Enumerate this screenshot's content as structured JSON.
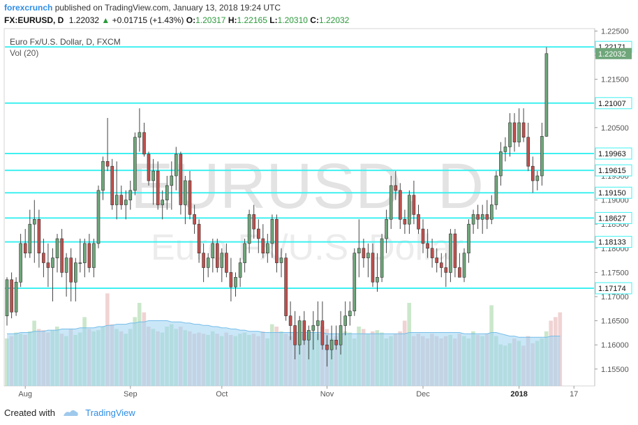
{
  "header": {
    "author": "forexcrunch",
    "published_text": "published on TradingView.com, January 13, 2018 19:24 UTC",
    "symbol": "FX:EURUSD, D",
    "last": "1.22032",
    "change": "+0.01715 (+1.43%)",
    "o_label": "O:",
    "o_value": "1.20317",
    "h_label": "H:",
    "h_value": "1.22165",
    "l_label": "L:",
    "l_value": "1.20310",
    "c_label": "C:",
    "c_value": "1.22032"
  },
  "footer": {
    "created_with": "Created with",
    "brand": "TradingView"
  },
  "chart_data": {
    "type": "candlestick",
    "title": "Euro Fx/U.S. Dollar, D, FXCM",
    "indicator_label": "Vol (20)",
    "watermark_symbol": "EURUSD, D",
    "watermark_name": "Euro Fx/U.S. Dollar",
    "y_range": [
      1.1515,
      1.2255
    ],
    "y_ticks": [
      "1.22500",
      "1.22000",
      "1.21500",
      "1.21000",
      "1.20500",
      "1.20000",
      "1.19500",
      "1.19000",
      "1.18500",
      "1.18000",
      "1.17500",
      "1.17000",
      "1.16500",
      "1.16000",
      "1.15500"
    ],
    "x_labels": [
      {
        "label": "Aug",
        "index": 4
      },
      {
        "label": "Sep",
        "index": 27
      },
      {
        "label": "Oct",
        "index": 47
      },
      {
        "label": "Nov",
        "index": 70
      },
      {
        "label": "Dec",
        "index": 91
      },
      {
        "label": "2018",
        "index": 112
      },
      {
        "label": "17",
        "index": 124
      }
    ],
    "levels": [
      "1.22171",
      "1.21007",
      "1.19963",
      "1.19615",
      "1.19150",
      "1.18627",
      "1.18133",
      "1.17174"
    ],
    "last_price": "1.22032",
    "colors": {
      "up": "#6fa67a",
      "down": "#c0504d",
      "level": "#3ff0f0",
      "volume_ma": "#9fd4f2",
      "volume_up": "#a8d7a8",
      "volume_down": "#e6b6b6",
      "last_label": "#6fa67a"
    },
    "candles": [
      {
        "o": 1.166,
        "h": 1.174,
        "l": 1.164,
        "c": 1.1735
      },
      {
        "o": 1.1735,
        "h": 1.175,
        "l": 1.1655,
        "c": 1.1668
      },
      {
        "o": 1.1668,
        "h": 1.174,
        "l": 1.166,
        "c": 1.173
      },
      {
        "o": 1.173,
        "h": 1.183,
        "l": 1.172,
        "c": 1.181
      },
      {
        "o": 1.181,
        "h": 1.184,
        "l": 1.178,
        "c": 1.179
      },
      {
        "o": 1.179,
        "h": 1.188,
        "l": 1.178,
        "c": 1.185
      },
      {
        "o": 1.185,
        "h": 1.19,
        "l": 1.177,
        "c": 1.186
      },
      {
        "o": 1.186,
        "h": 1.188,
        "l": 1.176,
        "c": 1.179
      },
      {
        "o": 1.179,
        "h": 1.182,
        "l": 1.174,
        "c": 1.177
      },
      {
        "o": 1.177,
        "h": 1.181,
        "l": 1.172,
        "c": 1.176
      },
      {
        "o": 1.176,
        "h": 1.18,
        "l": 1.169,
        "c": 1.178
      },
      {
        "o": 1.178,
        "h": 1.183,
        "l": 1.175,
        "c": 1.182
      },
      {
        "o": 1.182,
        "h": 1.184,
        "l": 1.174,
        "c": 1.175
      },
      {
        "o": 1.175,
        "h": 1.179,
        "l": 1.17,
        "c": 1.178
      },
      {
        "o": 1.178,
        "h": 1.18,
        "l": 1.169,
        "c": 1.173
      },
      {
        "o": 1.173,
        "h": 1.178,
        "l": 1.169,
        "c": 1.177
      },
      {
        "o": 1.177,
        "h": 1.182,
        "l": 1.175,
        "c": 1.177
      },
      {
        "o": 1.177,
        "h": 1.182,
        "l": 1.174,
        "c": 1.181
      },
      {
        "o": 1.181,
        "h": 1.183,
        "l": 1.175,
        "c": 1.176
      },
      {
        "o": 1.176,
        "h": 1.182,
        "l": 1.174,
        "c": 1.181
      },
      {
        "o": 1.181,
        "h": 1.193,
        "l": 1.18,
        "c": 1.192
      },
      {
        "o": 1.192,
        "h": 1.199,
        "l": 1.19,
        "c": 1.198
      },
      {
        "o": 1.198,
        "h": 1.207,
        "l": 1.196,
        "c": 1.197
      },
      {
        "o": 1.197,
        "h": 1.1985,
        "l": 1.188,
        "c": 1.189
      },
      {
        "o": 1.189,
        "h": 1.198,
        "l": 1.186,
        "c": 1.191
      },
      {
        "o": 1.191,
        "h": 1.193,
        "l": 1.188,
        "c": 1.189
      },
      {
        "o": 1.189,
        "h": 1.192,
        "l": 1.186,
        "c": 1.19
      },
      {
        "o": 1.19,
        "h": 1.194,
        "l": 1.188,
        "c": 1.192
      },
      {
        "o": 1.192,
        "h": 1.204,
        "l": 1.191,
        "c": 1.203
      },
      {
        "o": 1.203,
        "h": 1.209,
        "l": 1.2,
        "c": 1.204
      },
      {
        "o": 1.204,
        "h": 1.206,
        "l": 1.199,
        "c": 1.1995
      },
      {
        "o": 1.1995,
        "h": 1.2,
        "l": 1.193,
        "c": 1.194
      },
      {
        "o": 1.194,
        "h": 1.1985,
        "l": 1.189,
        "c": 1.196
      },
      {
        "o": 1.196,
        "h": 1.198,
        "l": 1.188,
        "c": 1.189
      },
      {
        "o": 1.189,
        "h": 1.192,
        "l": 1.186,
        "c": 1.19
      },
      {
        "o": 1.19,
        "h": 1.195,
        "l": 1.188,
        "c": 1.193
      },
      {
        "o": 1.193,
        "h": 1.198,
        "l": 1.188,
        "c": 1.195
      },
      {
        "o": 1.195,
        "h": 1.201,
        "l": 1.192,
        "c": 1.1995
      },
      {
        "o": 1.1995,
        "h": 1.2,
        "l": 1.187,
        "c": 1.189
      },
      {
        "o": 1.189,
        "h": 1.195,
        "l": 1.185,
        "c": 1.194
      },
      {
        "o": 1.194,
        "h": 1.196,
        "l": 1.186,
        "c": 1.187
      },
      {
        "o": 1.187,
        "h": 1.189,
        "l": 1.183,
        "c": 1.185
      },
      {
        "o": 1.185,
        "h": 1.186,
        "l": 1.177,
        "c": 1.179
      },
      {
        "o": 1.179,
        "h": 1.181,
        "l": 1.173,
        "c": 1.176
      },
      {
        "o": 1.176,
        "h": 1.179,
        "l": 1.174,
        "c": 1.178
      },
      {
        "o": 1.178,
        "h": 1.182,
        "l": 1.175,
        "c": 1.181
      },
      {
        "o": 1.181,
        "h": 1.182,
        "l": 1.175,
        "c": 1.176
      },
      {
        "o": 1.176,
        "h": 1.18,
        "l": 1.173,
        "c": 1.179
      },
      {
        "o": 1.179,
        "h": 1.181,
        "l": 1.174,
        "c": 1.175
      },
      {
        "o": 1.175,
        "h": 1.178,
        "l": 1.169,
        "c": 1.172
      },
      {
        "o": 1.172,
        "h": 1.175,
        "l": 1.17,
        "c": 1.174
      },
      {
        "o": 1.174,
        "h": 1.178,
        "l": 1.172,
        "c": 1.177
      },
      {
        "o": 1.177,
        "h": 1.182,
        "l": 1.175,
        "c": 1.181
      },
      {
        "o": 1.181,
        "h": 1.188,
        "l": 1.179,
        "c": 1.187
      },
      {
        "o": 1.187,
        "h": 1.189,
        "l": 1.182,
        "c": 1.184
      },
      {
        "o": 1.184,
        "h": 1.186,
        "l": 1.179,
        "c": 1.182
      },
      {
        "o": 1.182,
        "h": 1.185,
        "l": 1.178,
        "c": 1.179
      },
      {
        "o": 1.179,
        "h": 1.183,
        "l": 1.177,
        "c": 1.181
      },
      {
        "o": 1.181,
        "h": 1.187,
        "l": 1.178,
        "c": 1.186
      },
      {
        "o": 1.186,
        "h": 1.187,
        "l": 1.175,
        "c": 1.177
      },
      {
        "o": 1.177,
        "h": 1.18,
        "l": 1.174,
        "c": 1.178
      },
      {
        "o": 1.178,
        "h": 1.179,
        "l": 1.165,
        "c": 1.166
      },
      {
        "o": 1.166,
        "h": 1.169,
        "l": 1.161,
        "c": 1.164
      },
      {
        "o": 1.164,
        "h": 1.167,
        "l": 1.157,
        "c": 1.16
      },
      {
        "o": 1.16,
        "h": 1.166,
        "l": 1.158,
        "c": 1.165
      },
      {
        "o": 1.165,
        "h": 1.167,
        "l": 1.16,
        "c": 1.161
      },
      {
        "o": 1.161,
        "h": 1.164,
        "l": 1.157,
        "c": 1.163
      },
      {
        "o": 1.163,
        "h": 1.167,
        "l": 1.159,
        "c": 1.164
      },
      {
        "o": 1.164,
        "h": 1.169,
        "l": 1.161,
        "c": 1.165
      },
      {
        "o": 1.165,
        "h": 1.169,
        "l": 1.159,
        "c": 1.16
      },
      {
        "o": 1.16,
        "h": 1.162,
        "l": 1.1555,
        "c": 1.159
      },
      {
        "o": 1.159,
        "h": 1.164,
        "l": 1.157,
        "c": 1.161
      },
      {
        "o": 1.161,
        "h": 1.164,
        "l": 1.159,
        "c": 1.16
      },
      {
        "o": 1.16,
        "h": 1.167,
        "l": 1.158,
        "c": 1.164
      },
      {
        "o": 1.164,
        "h": 1.169,
        "l": 1.162,
        "c": 1.166
      },
      {
        "o": 1.166,
        "h": 1.169,
        "l": 1.164,
        "c": 1.167
      },
      {
        "o": 1.167,
        "h": 1.18,
        "l": 1.166,
        "c": 1.179
      },
      {
        "o": 1.179,
        "h": 1.186,
        "l": 1.174,
        "c": 1.18
      },
      {
        "o": 1.18,
        "h": 1.182,
        "l": 1.176,
        "c": 1.178
      },
      {
        "o": 1.178,
        "h": 1.181,
        "l": 1.174,
        "c": 1.179
      },
      {
        "o": 1.179,
        "h": 1.181,
        "l": 1.172,
        "c": 1.173
      },
      {
        "o": 1.173,
        "h": 1.179,
        "l": 1.171,
        "c": 1.174
      },
      {
        "o": 1.174,
        "h": 1.183,
        "l": 1.173,
        "c": 1.182
      },
      {
        "o": 1.182,
        "h": 1.188,
        "l": 1.179,
        "c": 1.186
      },
      {
        "o": 1.186,
        "h": 1.195,
        "l": 1.184,
        "c": 1.193
      },
      {
        "o": 1.193,
        "h": 1.196,
        "l": 1.19,
        "c": 1.192
      },
      {
        "o": 1.192,
        "h": 1.1935,
        "l": 1.184,
        "c": 1.186
      },
      {
        "o": 1.186,
        "h": 1.188,
        "l": 1.183,
        "c": 1.185
      },
      {
        "o": 1.185,
        "h": 1.192,
        "l": 1.183,
        "c": 1.191
      },
      {
        "o": 1.191,
        "h": 1.194,
        "l": 1.185,
        "c": 1.187
      },
      {
        "o": 1.187,
        "h": 1.189,
        "l": 1.183,
        "c": 1.184
      },
      {
        "o": 1.184,
        "h": 1.186,
        "l": 1.179,
        "c": 1.181
      },
      {
        "o": 1.181,
        "h": 1.184,
        "l": 1.178,
        "c": 1.18
      },
      {
        "o": 1.18,
        "h": 1.182,
        "l": 1.176,
        "c": 1.178
      },
      {
        "o": 1.178,
        "h": 1.18,
        "l": 1.175,
        "c": 1.177
      },
      {
        "o": 1.177,
        "h": 1.179,
        "l": 1.174,
        "c": 1.176
      },
      {
        "o": 1.176,
        "h": 1.179,
        "l": 1.172,
        "c": 1.175
      },
      {
        "o": 1.175,
        "h": 1.184,
        "l": 1.173,
        "c": 1.183
      },
      {
        "o": 1.183,
        "h": 1.184,
        "l": 1.174,
        "c": 1.176
      },
      {
        "o": 1.176,
        "h": 1.179,
        "l": 1.174,
        "c": 1.174
      },
      {
        "o": 1.174,
        "h": 1.18,
        "l": 1.173,
        "c": 1.179
      },
      {
        "o": 1.179,
        "h": 1.186,
        "l": 1.177,
        "c": 1.185
      },
      {
        "o": 1.185,
        "h": 1.188,
        "l": 1.183,
        "c": 1.187
      },
      {
        "o": 1.187,
        "h": 1.189,
        "l": 1.184,
        "c": 1.186
      },
      {
        "o": 1.186,
        "h": 1.189,
        "l": 1.183,
        "c": 1.187
      },
      {
        "o": 1.187,
        "h": 1.19,
        "l": 1.184,
        "c": 1.186
      },
      {
        "o": 1.186,
        "h": 1.191,
        "l": 1.185,
        "c": 1.189
      },
      {
        "o": 1.189,
        "h": 1.196,
        "l": 1.188,
        "c": 1.195
      },
      {
        "o": 1.195,
        "h": 1.202,
        "l": 1.193,
        "c": 1.2
      },
      {
        "o": 1.2,
        "h": 1.203,
        "l": 1.198,
        "c": 1.201
      },
      {
        "o": 1.201,
        "h": 1.208,
        "l": 1.199,
        "c": 1.206
      },
      {
        "o": 1.206,
        "h": 1.208,
        "l": 1.2,
        "c": 1.202
      },
      {
        "o": 1.202,
        "h": 1.209,
        "l": 1.201,
        "c": 1.206
      },
      {
        "o": 1.206,
        "h": 1.209,
        "l": 1.202,
        "c": 1.203
      },
      {
        "o": 1.203,
        "h": 1.206,
        "l": 1.196,
        "c": 1.197
      },
      {
        "o": 1.197,
        "h": 1.199,
        "l": 1.1915,
        "c": 1.194
      },
      {
        "o": 1.194,
        "h": 1.196,
        "l": 1.192,
        "c": 1.195
      },
      {
        "o": 1.195,
        "h": 1.206,
        "l": 1.193,
        "c": 1.2032
      },
      {
        "o": 1.2032,
        "h": 1.22165,
        "l": 1.2031,
        "c": 1.22032
      }
    ],
    "volumes": [
      0.4,
      0.42,
      0.45,
      0.44,
      0.43,
      0.46,
      0.55,
      0.48,
      0.47,
      0.45,
      0.47,
      0.5,
      0.44,
      0.42,
      0.48,
      0.43,
      0.45,
      0.58,
      0.48,
      0.46,
      0.47,
      0.5,
      0.78,
      0.52,
      0.48,
      0.46,
      0.44,
      0.48,
      0.58,
      0.7,
      0.62,
      0.5,
      0.48,
      0.46,
      0.45,
      0.5,
      0.52,
      0.48,
      0.5,
      0.47,
      0.46,
      0.44,
      0.45,
      0.44,
      0.43,
      0.46,
      0.44,
      0.42,
      0.45,
      0.43,
      0.42,
      0.44,
      0.45,
      0.43,
      0.44,
      0.42,
      0.46,
      0.4,
      0.52,
      0.5,
      0.46,
      0.44,
      0.42,
      0.45,
      0.55,
      0.44,
      0.43,
      0.46,
      0.44,
      0.5,
      0.48,
      0.4,
      0.42,
      0.44,
      0.46,
      0.45,
      0.4,
      0.5,
      0.48,
      0.44,
      0.46,
      0.47,
      0.45,
      0.4,
      0.42,
      0.44,
      0.46,
      0.55,
      0.7,
      0.42,
      0.44,
      0.42,
      0.4,
      0.44,
      0.42,
      0.4,
      0.42,
      0.43,
      0.4,
      0.44,
      0.42,
      0.4,
      0.46,
      0.43,
      0.42,
      0.44,
      0.68,
      0.42,
      0.35,
      0.34,
      0.36,
      0.4,
      0.38,
      0.34,
      0.42,
      0.36,
      0.38,
      0.4,
      0.46,
      0.55,
      0.58,
      0.62
    ],
    "volume_ma": [
      0.44,
      0.44,
      0.44,
      0.45,
      0.45,
      0.45,
      0.46,
      0.46,
      0.46,
      0.47,
      0.47,
      0.47,
      0.48,
      0.48,
      0.48,
      0.48,
      0.49,
      0.49,
      0.49,
      0.49,
      0.5,
      0.5,
      0.51,
      0.51,
      0.52,
      0.52,
      0.52,
      0.53,
      0.53,
      0.54,
      0.54,
      0.55,
      0.55,
      0.55,
      0.55,
      0.55,
      0.54,
      0.54,
      0.54,
      0.53,
      0.53,
      0.52,
      0.52,
      0.51,
      0.51,
      0.5,
      0.5,
      0.49,
      0.49,
      0.48,
      0.48,
      0.47,
      0.47,
      0.46,
      0.46,
      0.46,
      0.45,
      0.45,
      0.45,
      0.45,
      0.45,
      0.45,
      0.45,
      0.45,
      0.45,
      0.45,
      0.45,
      0.45,
      0.45,
      0.45,
      0.44,
      0.44,
      0.44,
      0.44,
      0.44,
      0.44,
      0.44,
      0.44,
      0.44,
      0.44,
      0.44,
      0.44,
      0.44,
      0.44,
      0.44,
      0.44,
      0.44,
      0.44,
      0.45,
      0.45,
      0.45,
      0.45,
      0.45,
      0.45,
      0.45,
      0.45,
      0.45,
      0.45,
      0.45,
      0.45,
      0.44,
      0.44,
      0.44,
      0.44,
      0.44,
      0.44,
      0.45,
      0.45,
      0.44,
      0.43,
      0.42,
      0.42,
      0.41,
      0.41,
      0.41,
      0.41,
      0.41,
      0.41,
      0.41,
      0.42,
      0.42,
      0.42
    ]
  }
}
